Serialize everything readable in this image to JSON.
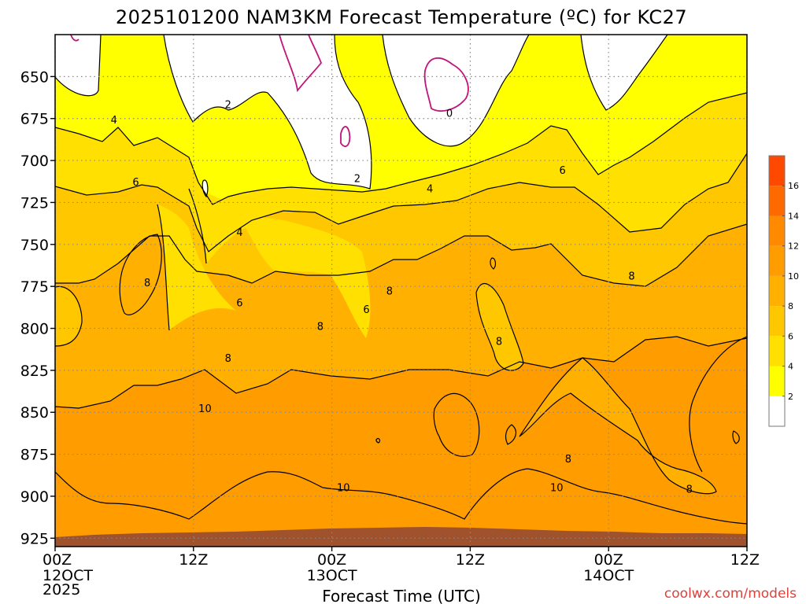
{
  "chart_data": {
    "type": "heatmap",
    "title": "2025101200 NAM3KM Forecast Temperature (ºC) for KC27",
    "xlabel": "Forecast Time (UTC)",
    "ylabel": "",
    "y_axis": {
      "units": "hPa",
      "ticks": [
        650,
        675,
        700,
        725,
        750,
        775,
        800,
        825,
        850,
        875,
        900,
        925
      ],
      "range": [
        925,
        625
      ],
      "grid": true
    },
    "x_axis": {
      "units": "forecast hours",
      "range": [
        0,
        60
      ],
      "ticks": [
        {
          "hour": 0,
          "time": "00Z",
          "date": "12OCT",
          "year": "2025"
        },
        {
          "hour": 12,
          "time": "12Z",
          "date": "",
          "year": ""
        },
        {
          "hour": 24,
          "time": "00Z",
          "date": "13OCT",
          "year": ""
        },
        {
          "hour": 36,
          "time": "12Z",
          "date": "",
          "year": ""
        },
        {
          "hour": 48,
          "time": "00Z",
          "date": "14OCT",
          "year": ""
        },
        {
          "hour": 60,
          "time": "12Z",
          "date": "",
          "year": ""
        }
      ],
      "grid": true
    },
    "colorbar": {
      "levels": [
        2,
        4,
        6,
        8,
        10,
        12,
        14,
        16
      ],
      "colors": [
        "#ffffff",
        "#ffff00",
        "#ffe000",
        "#ffc700",
        "#ffb000",
        "#ff9c00",
        "#ff8a00",
        "#ff6a00",
        "#ff4800"
      ],
      "range": [
        0,
        18
      ]
    },
    "surface_color": "#a0522d",
    "contour_interval": 2,
    "contour_labels": [
      {
        "value": "0",
        "hour": 34.2,
        "pressure": 672
      },
      {
        "value": "2",
        "hour": 15.0,
        "pressure": 667
      },
      {
        "value": "2",
        "hour": 26.2,
        "pressure": 711
      },
      {
        "value": "4",
        "hour": 5.1,
        "pressure": 676
      },
      {
        "value": "4",
        "hour": 16.0,
        "pressure": 743
      },
      {
        "value": "4",
        "hour": 32.5,
        "pressure": 717
      },
      {
        "value": "6",
        "hour": 7.0,
        "pressure": 713
      },
      {
        "value": "6",
        "hour": 16.0,
        "pressure": 785
      },
      {
        "value": "6",
        "hour": 27.0,
        "pressure": 789
      },
      {
        "value": "6",
        "hour": 44.0,
        "pressure": 706
      },
      {
        "value": "8",
        "hour": 8.0,
        "pressure": 773
      },
      {
        "value": "8",
        "hour": 15.0,
        "pressure": 818
      },
      {
        "value": "8",
        "hour": 23.0,
        "pressure": 799
      },
      {
        "value": "8",
        "hour": 29.0,
        "pressure": 778
      },
      {
        "value": "8",
        "hour": 38.5,
        "pressure": 808
      },
      {
        "value": "8",
        "hour": 44.5,
        "pressure": 878
      },
      {
        "value": "8",
        "hour": 50.0,
        "pressure": 769
      },
      {
        "value": "8",
        "hour": 55.0,
        "pressure": 896
      },
      {
        "value": "10",
        "hour": 13.0,
        "pressure": 848
      },
      {
        "value": "10",
        "hour": 25.0,
        "pressure": 895
      },
      {
        "value": "10",
        "hour": 43.5,
        "pressure": 895
      }
    ]
  },
  "credit": "coolwx.com/models",
  "credit_color": "#e0403a"
}
